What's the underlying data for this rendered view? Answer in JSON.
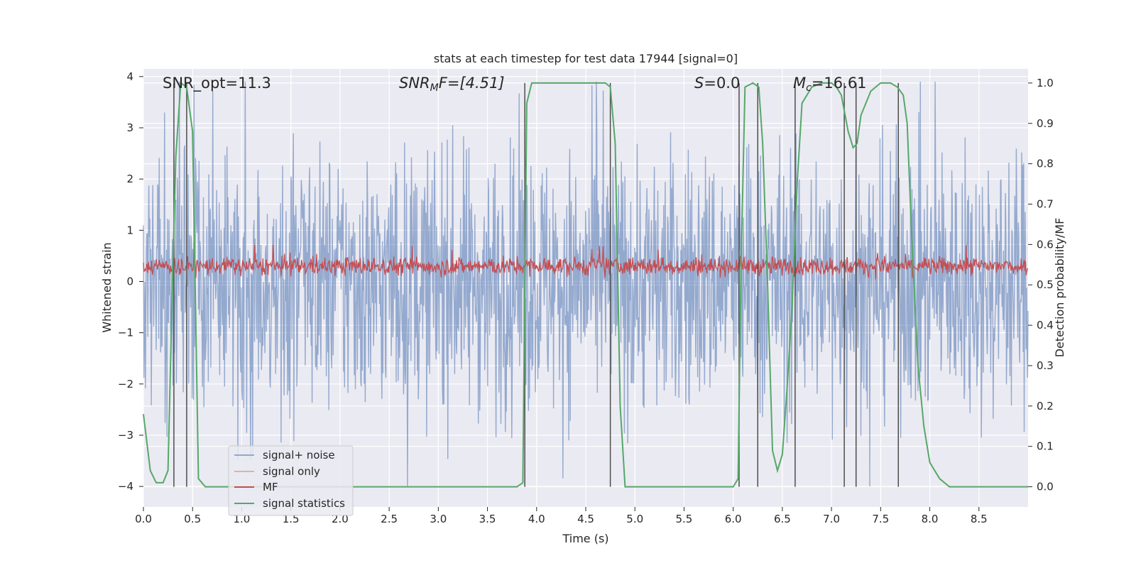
{
  "chart_data": {
    "type": "line",
    "title": "stats at each timestep for test data 17944 [signal=0]",
    "xlabel": "Time (s)",
    "ylabel_left": "Whitened strain",
    "ylabel_right": "Detection probability/MF",
    "xlim": [
      0,
      9.0
    ],
    "ylim_left": [
      -4.4,
      4.15
    ],
    "ylim_right": [
      -0.05,
      1.035
    ],
    "x_ticks": [
      "0.0",
      "0.5",
      "1.0",
      "1.5",
      "2.0",
      "2.5",
      "3.0",
      "3.5",
      "4.0",
      "4.5",
      "5.0",
      "5.5",
      "6.0",
      "6.5",
      "7.0",
      "7.5",
      "8.0",
      "8.5"
    ],
    "y_ticks_left": [
      "−4",
      "−3",
      "−2",
      "−1",
      "0",
      "1",
      "2",
      "3",
      "4"
    ],
    "y_ticks_right": [
      "0.0",
      "0.1",
      "0.2",
      "0.3",
      "0.4",
      "0.5",
      "0.6",
      "0.7",
      "0.8",
      "0.9",
      "1.0"
    ],
    "grid": true,
    "legend_position": "lower-left",
    "background": "#eaeaf2",
    "annotations": {
      "snr_opt": "SNR_opt=11.3",
      "snr_mf_sym": "SNR",
      "snr_mf_sub": "M",
      "snr_mf_rest": "F=[4.51]",
      "s_sym": "S",
      "s_rest": "=0.0",
      "mc_sym": "M",
      "mc_sub": "c",
      "mc_rest": "=16.61"
    },
    "series": [
      {
        "name": "signal+ noise",
        "color": "#4c72b0",
        "alpha": 0.5,
        "axis": "left",
        "envelope": {
          "typical_amplitude": 1.7,
          "min": -4.0,
          "max": 3.9
        }
      },
      {
        "name": "signal only",
        "color": "#dd8452",
        "alpha": 0.5,
        "axis": "left",
        "values": []
      },
      {
        "name": "MF",
        "color": "#c44e52",
        "axis": "left",
        "envelope": {
          "center": 0.3,
          "typical_amplitude": 0.25,
          "max": 0.97
        }
      },
      {
        "name": "signal statistics",
        "color": "#55a868",
        "axis": "right",
        "x": [
          0.0,
          0.07,
          0.13,
          0.2,
          0.25,
          0.3,
          0.33,
          0.38,
          0.44,
          0.5,
          0.56,
          0.63,
          0.75,
          1.0,
          2.0,
          3.0,
          3.5,
          3.8,
          3.86,
          3.88,
          3.9,
          3.95,
          4.0,
          4.5,
          4.7,
          4.75,
          4.8,
          4.85,
          4.9,
          5.0,
          5.5,
          6.0,
          6.05,
          6.08,
          6.12,
          6.2,
          6.26,
          6.3,
          6.35,
          6.4,
          6.45,
          6.5,
          6.55,
          6.6,
          6.65,
          6.7,
          6.8,
          6.9,
          7.0,
          7.05,
          7.1,
          7.17,
          7.22,
          7.26,
          7.3,
          7.4,
          7.5,
          7.6,
          7.67,
          7.73,
          7.77,
          7.82,
          7.88,
          7.94,
          8.0,
          8.1,
          8.2,
          8.5,
          9.0
        ],
        "values": [
          0.18,
          0.04,
          0.01,
          0.01,
          0.04,
          0.55,
          0.82,
          1.0,
          0.99,
          0.88,
          0.02,
          0.0,
          0.0,
          0.0,
          0.0,
          0.0,
          0.0,
          0.0,
          0.01,
          0.5,
          0.95,
          1.0,
          1.0,
          1.0,
          1.0,
          0.99,
          0.85,
          0.2,
          0.0,
          0.0,
          0.0,
          0.0,
          0.02,
          0.55,
          0.99,
          1.0,
          0.99,
          0.85,
          0.5,
          0.09,
          0.04,
          0.08,
          0.25,
          0.45,
          0.75,
          0.95,
          0.99,
          1.0,
          1.0,
          0.99,
          0.97,
          0.88,
          0.84,
          0.85,
          0.92,
          0.98,
          1.0,
          1.0,
          0.99,
          0.97,
          0.9,
          0.6,
          0.3,
          0.15,
          0.06,
          0.02,
          0.0,
          0.0,
          0.0
        ]
      },
      {
        "name": "vertical-lines",
        "color": "#4d4d4d",
        "axis": "right",
        "x": [
          0.31,
          0.44,
          3.88,
          4.75,
          6.06,
          6.25,
          6.63,
          7.13,
          7.25,
          7.68
        ]
      }
    ]
  }
}
